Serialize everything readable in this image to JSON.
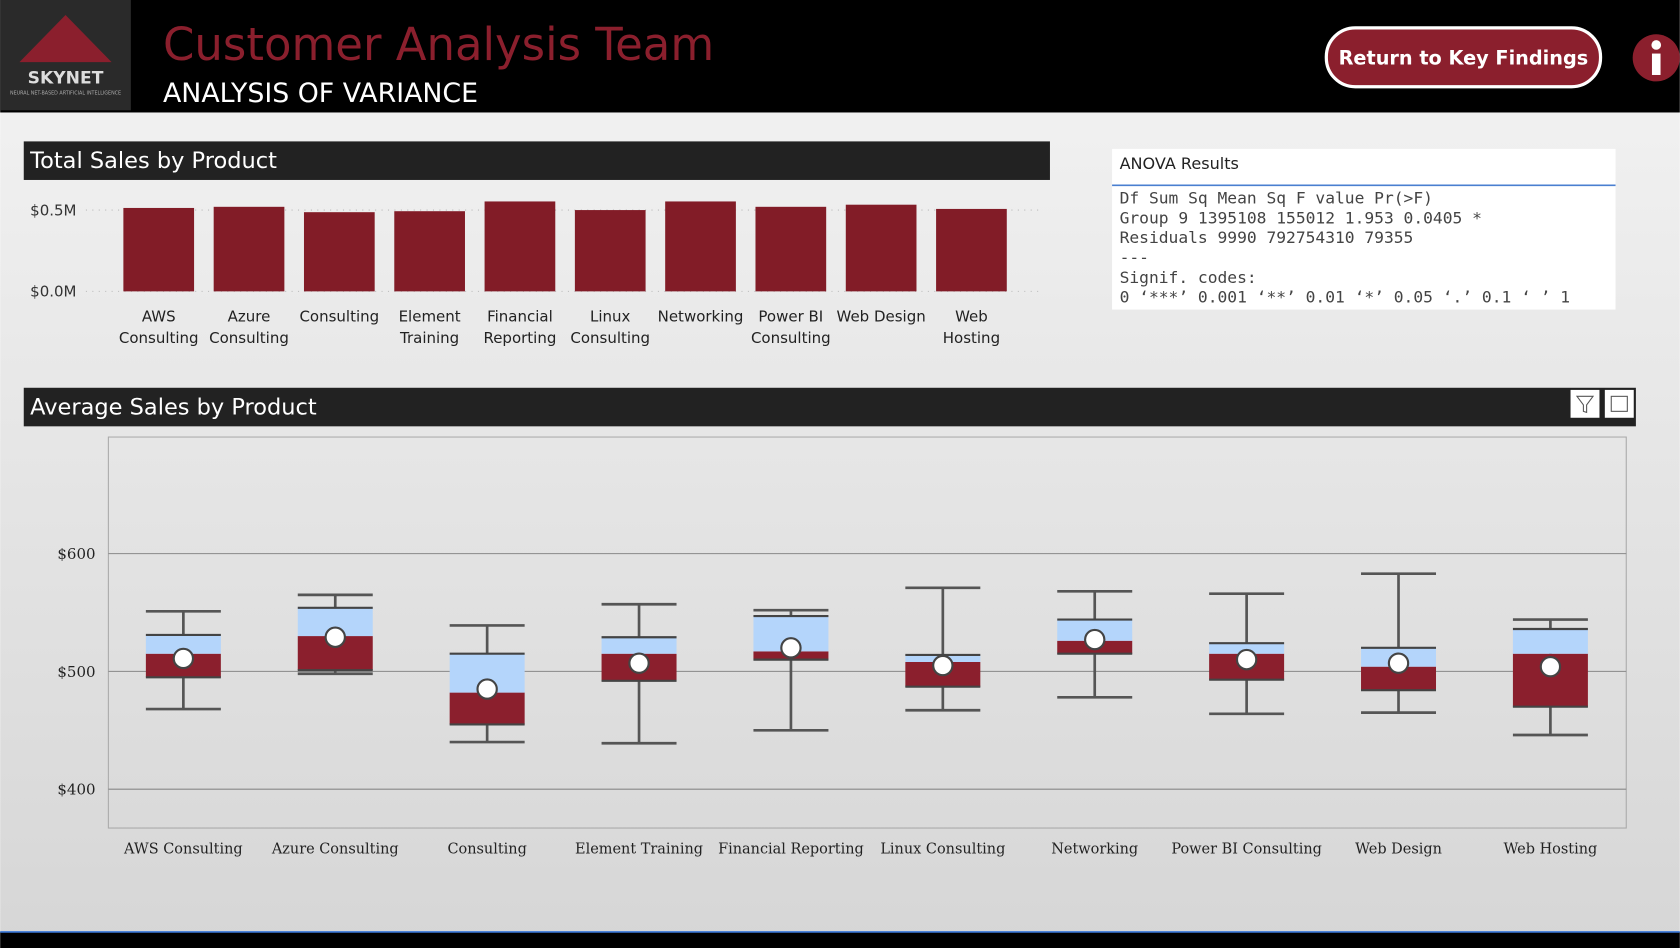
{
  "header": {
    "logo": "SKYNET",
    "logo_tagline": "NEURAL NET-BASED ARTIFICIAL INTELLIGENCE",
    "title": "Customer Analysis Team",
    "subtitle": "ANALYSIS OF VARIANCE",
    "button": "Return to Key Findings"
  },
  "anova": {
    "title": "ANOVA Results",
    "lines": [
      "Df Sum Sq Mean Sq F value Pr(>F)",
      "Group 9 1395108 155012 1.953 0.0405 *",
      "Residuals 9990 792754310 79355",
      "---",
      "Signif. codes:",
      "0 ‘***’ 0.001 ‘**’ 0.01 ‘*’ 0.05 ‘.’ 0.1 ‘ ’ 1"
    ]
  },
  "chart_data": [
    {
      "type": "bar",
      "title": "Total Sales by Product",
      "categories": [
        "AWS Consulting",
        "Azure Consulting",
        "Consulting",
        "Element Training",
        "Financial Reporting",
        "Linux Consulting",
        "Networking",
        "Power BI Consulting",
        "Web Design",
        "Web Hosting"
      ],
      "values": [
        0.513,
        0.52,
        0.487,
        0.493,
        0.553,
        0.5,
        0.553,
        0.52,
        0.533,
        0.507
      ],
      "color": "#821c27",
      "ylim": [
        0,
        0.56
      ],
      "yticks": [
        {
          "value": 0,
          "label": "$0.0M"
        },
        {
          "value": 0.5,
          "label": "$0.5M"
        }
      ],
      "grid": true
    },
    {
      "type": "box",
      "title": "Average Sales by Product",
      "categories": [
        "AWS Consulting",
        "Azure Consulting",
        "Consulting",
        "Element Training",
        "Financial Reporting",
        "Linux Consulting",
        "Networking",
        "Power BI Consulting",
        "Web Design",
        "Web Hosting"
      ],
      "low": [
        468,
        498,
        440,
        439,
        450,
        467,
        478,
        464,
        465,
        446
      ],
      "q1": [
        495,
        501,
        455,
        492,
        510,
        487,
        515,
        493,
        484,
        470
      ],
      "median": [
        515,
        530,
        482,
        515,
        517,
        508,
        526,
        515,
        504,
        515
      ],
      "q3": [
        531,
        554,
        515,
        529,
        547,
        514,
        544,
        524,
        520,
        536
      ],
      "high": [
        551,
        565,
        539,
        557,
        552,
        571,
        568,
        566,
        583,
        544
      ],
      "mean": [
        511,
        529,
        485,
        507,
        520,
        505,
        527,
        510,
        507,
        504
      ],
      "color_lower": "#8b1f2d",
      "color_upper": "#b4d5fb",
      "ylim": [
        367,
        699
      ],
      "yticks": [
        {
          "value": 400,
          "label": "$400"
        },
        {
          "value": 500,
          "label": "$500"
        },
        {
          "value": 600,
          "label": "$600"
        }
      ],
      "grid": true
    }
  ]
}
